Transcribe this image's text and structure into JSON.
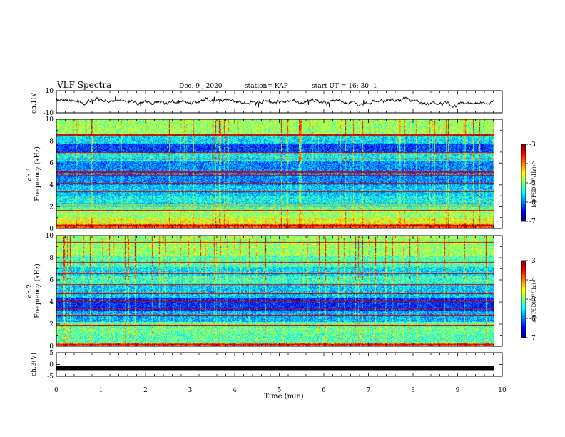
{
  "header": {
    "title": "VLF Spectra",
    "date": "Dec. 9  , 2020",
    "station": "station= KAP",
    "start": "start  UT  =   16: 30: 1"
  },
  "chart_data": [
    {
      "type": "line",
      "panel": "ch1-waveform",
      "ylabel": "ch.1(V)",
      "ylim": [
        -10,
        10
      ],
      "yticks": [
        "10",
        "-10"
      ],
      "xlim": [
        0,
        10
      ],
      "data_extent_min": [
        0,
        9.82
      ],
      "color": "#000000",
      "approx_mean": 0,
      "approx_range": [
        -6,
        6
      ]
    },
    {
      "type": "heatmap",
      "panel": "ch1-spectrogram",
      "ylabel": "ch.1\nFrequency  (kHz)",
      "ylim": [
        0,
        10
      ],
      "yticks": [
        "0",
        "2",
        "4",
        "6",
        "8",
        "10"
      ],
      "xlim": [
        0,
        10
      ],
      "data_extent_min": [
        0,
        9.82
      ],
      "colorbar": {
        "label": "log(PSD)(V²/Hz)",
        "range": [
          -7,
          -3
        ],
        "ticks": [
          "-3",
          "-4",
          "-5",
          "-6",
          "-7"
        ]
      },
      "bands_khz_level": [
        [
          0.0,
          0.4,
          -3.8
        ],
        [
          0.4,
          1.0,
          -4.6
        ],
        [
          1.0,
          1.8,
          -4.9
        ],
        [
          1.8,
          2.3,
          -5.2
        ],
        [
          2.3,
          3.0,
          -5.5
        ],
        [
          3.0,
          4.0,
          -5.7
        ],
        [
          4.0,
          5.0,
          -6.0
        ],
        [
          5.0,
          6.2,
          -6.0
        ],
        [
          6.2,
          7.0,
          -5.5
        ],
        [
          7.0,
          7.8,
          -6.3
        ],
        [
          7.8,
          8.6,
          -5.6
        ],
        [
          8.6,
          10.0,
          -4.9
        ]
      ],
      "lines_khz": [
        0.3,
        1.7,
        2.1,
        2.3,
        3.4,
        4.2,
        4.9,
        5.2,
        6.4,
        7.0,
        8.6
      ]
    },
    {
      "type": "heatmap",
      "panel": "ch2-spectrogram",
      "ylabel": "ch.2\nFrequency  (kHz)",
      "ylim": [
        0,
        10
      ],
      "yticks": [
        "0",
        "2",
        "4",
        "6",
        "8",
        "10"
      ],
      "xlim": [
        0,
        10
      ],
      "data_extent_min": [
        0,
        9.82
      ],
      "colorbar": {
        "label": "log(PSD)(V²/Hz)",
        "range": [
          -7,
          -3
        ],
        "ticks": [
          "-3",
          "-4",
          "-5",
          "-6",
          "-7"
        ]
      },
      "bands_khz_level": [
        [
          0.0,
          0.3,
          -3.8
        ],
        [
          0.3,
          1.2,
          -5.2
        ],
        [
          1.2,
          2.2,
          -5.1
        ],
        [
          2.2,
          3.2,
          -5.8
        ],
        [
          3.2,
          4.4,
          -6.4
        ],
        [
          4.4,
          5.6,
          -5.7
        ],
        [
          5.6,
          6.4,
          -5.3
        ],
        [
          6.4,
          7.2,
          -5.6
        ],
        [
          7.2,
          8.2,
          -5.2
        ],
        [
          8.2,
          10.0,
          -4.9
        ]
      ],
      "lines_khz": [
        0.2,
        1.9,
        2.8,
        3.4,
        4.1,
        4.8,
        5.6,
        6.6,
        7.6,
        9.4
      ]
    },
    {
      "type": "line",
      "panel": "ch3-waveform",
      "ylabel": "ch.3(V)",
      "ylim": [
        -5,
        5
      ],
      "yticks": [
        "5",
        "0",
        "-5"
      ],
      "xlim": [
        0,
        10
      ],
      "data_extent_min": [
        0,
        9.82
      ],
      "color": "#000000",
      "approx_value": -1.5
    }
  ],
  "xaxis": {
    "label": "Time  (min)",
    "ticks": [
      "0",
      "1",
      "2",
      "3",
      "4",
      "5",
      "6",
      "7",
      "8",
      "9",
      "10"
    ]
  }
}
